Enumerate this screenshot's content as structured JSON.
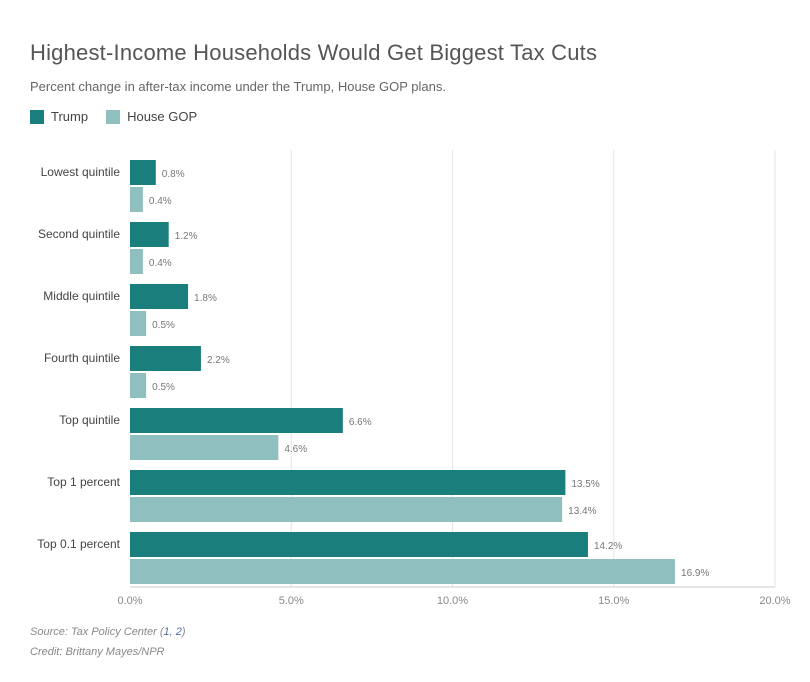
{
  "chart_data": {
    "type": "bar",
    "orientation": "horizontal",
    "title": "Highest-Income Households Would Get Biggest Tax Cuts",
    "subtitle": "Percent change in after-tax income under the Trump, House GOP plans.",
    "categories": [
      "Lowest quintile",
      "Second quintile",
      "Middle quintile",
      "Fourth quintile",
      "Top quintile",
      "Top 1 percent",
      "Top 0.1 percent"
    ],
    "series": [
      {
        "name": "Trump",
        "color": "#1a7e7c",
        "values": [
          0.8,
          1.2,
          1.8,
          2.2,
          6.6,
          13.5,
          14.2
        ],
        "labels": [
          "0.8%",
          "1.2%",
          "1.8%",
          "2.2%",
          "6.6%",
          "13.5%",
          "14.2%"
        ]
      },
      {
        "name": "House GOP",
        "color": "#8fbfbe",
        "values": [
          0.4,
          0.4,
          0.5,
          0.5,
          4.6,
          13.4,
          16.9
        ],
        "labels": [
          "0.4%",
          "0.4%",
          "0.5%",
          "0.5%",
          "4.6%",
          "13.4%",
          "16.9%"
        ]
      }
    ],
    "xlim": [
      0,
      20
    ],
    "xticks": [
      0,
      5,
      10,
      15,
      20
    ],
    "xtick_labels": [
      "0.0%",
      "5.0%",
      "10.0%",
      "15.0%",
      "20.0%"
    ],
    "xlabel": "",
    "ylabel": "",
    "grid": true,
    "legend_position": "top-left"
  },
  "footer": {
    "source_prefix": "Source: Tax Policy Center (",
    "link1": "1",
    "sep": ", ",
    "link2": "2",
    "source_suffix": ")",
    "credit": "Credit: Brittany Mayes/NPR"
  }
}
